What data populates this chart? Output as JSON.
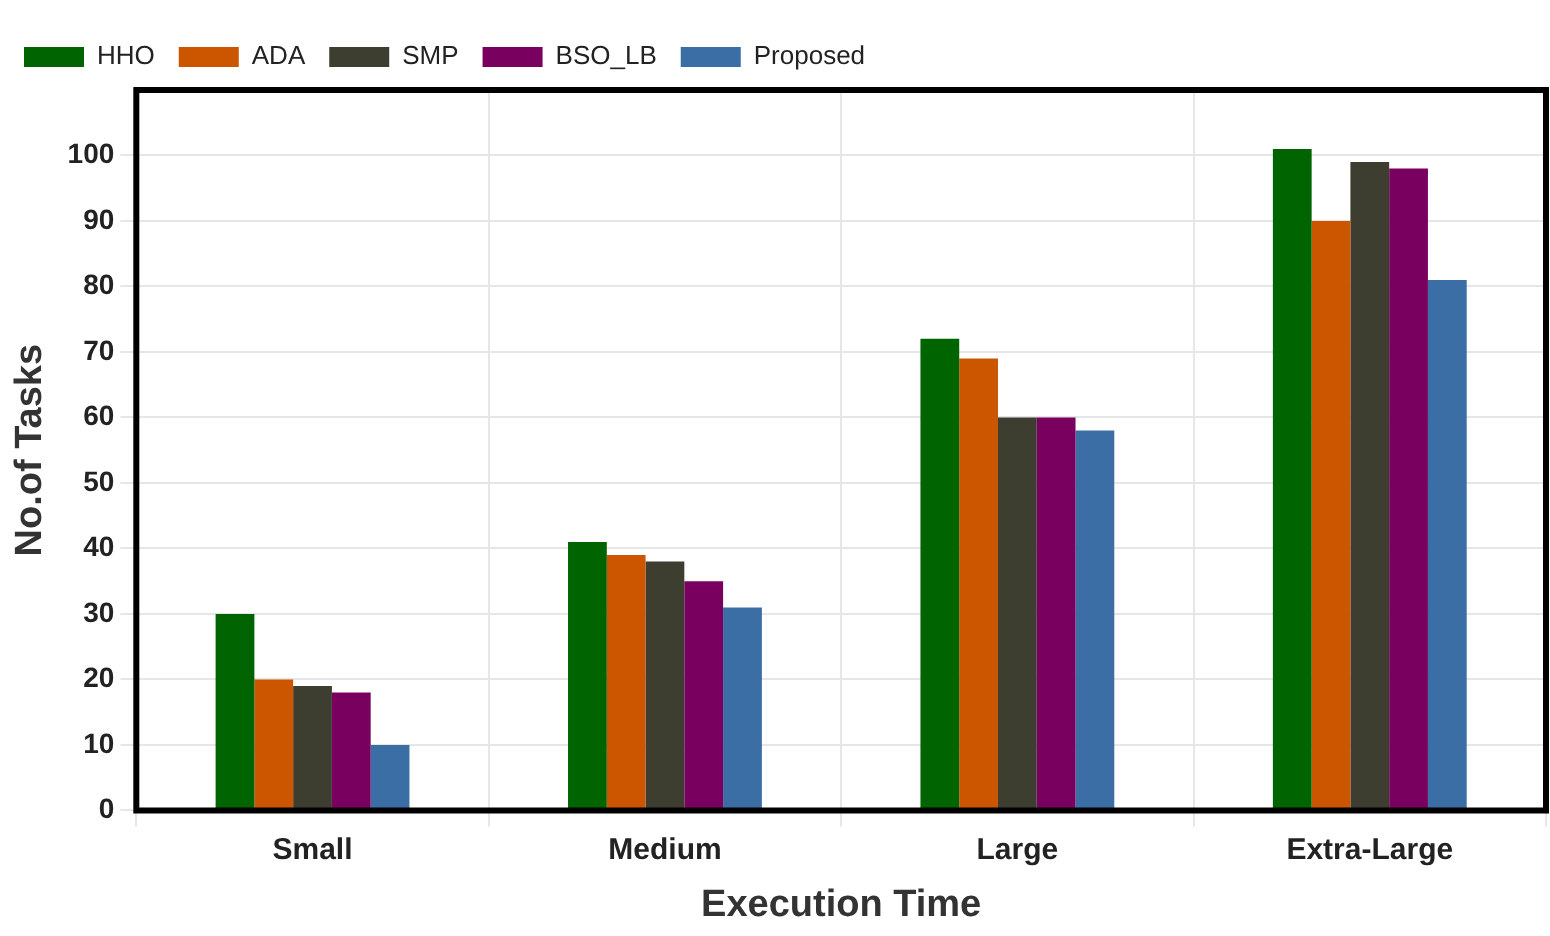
{
  "chart_data": {
    "type": "bar",
    "xlabel": "Execution Time",
    "ylabel": "No.of Tasks",
    "categories": [
      "Small",
      "Medium",
      "Large",
      "Extra-Large"
    ],
    "series": [
      {
        "name": "HHO",
        "color": "#006400",
        "values": [
          30,
          41,
          72,
          101
        ]
      },
      {
        "name": "ADA",
        "color": "#cc5500",
        "values": [
          20,
          39,
          69,
          90
        ]
      },
      {
        "name": "SMP",
        "color": "#3d3d30",
        "values": [
          19,
          38,
          60,
          99
        ]
      },
      {
        "name": "BSO_LB",
        "color": "#7a0060",
        "values": [
          18,
          35,
          60,
          98
        ]
      },
      {
        "name": "Proposed",
        "color": "#3a6ea5",
        "values": [
          10,
          31,
          58,
          81
        ]
      }
    ],
    "ylim": [
      0,
      110
    ],
    "yticks": [
      0,
      10,
      20,
      30,
      40,
      50,
      60,
      70,
      80,
      90,
      100
    ],
    "grid": true,
    "legend": "top left"
  }
}
